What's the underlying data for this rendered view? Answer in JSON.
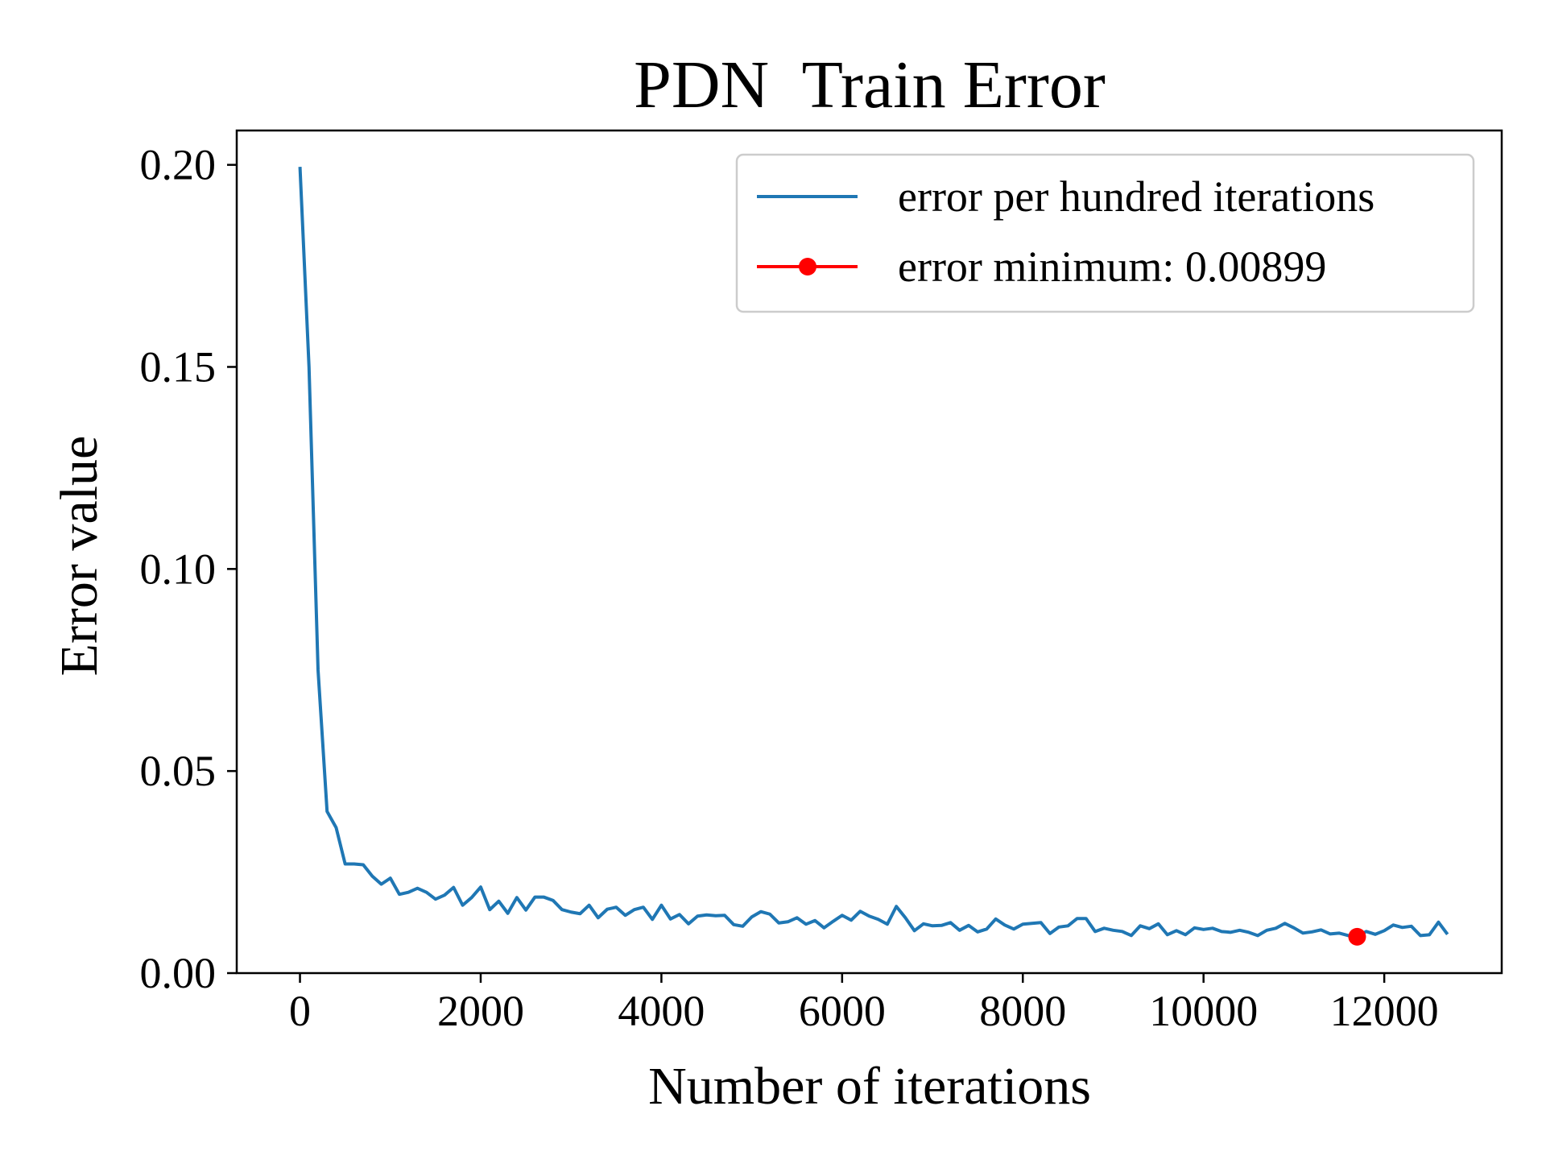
{
  "chart_data": {
    "type": "line",
    "title": "PDN  Train Error",
    "xlabel": "Number of iterations",
    "ylabel": "Error value",
    "xlim": [
      -700,
      13300
    ],
    "ylim": [
      0,
      0.2085
    ],
    "xticks": [
      0,
      2000,
      4000,
      6000,
      8000,
      10000,
      12000
    ],
    "xtick_labels": [
      "0",
      "2000",
      "4000",
      "6000",
      "8000",
      "10000",
      "12000"
    ],
    "yticks": [
      0.0,
      0.05,
      0.1,
      0.15,
      0.2
    ],
    "ytick_labels": [
      "0.00",
      "0.05",
      "0.10",
      "0.15",
      "0.20"
    ],
    "grid": false,
    "legend_position": "top-right",
    "series": [
      {
        "name": "error per hundred iterations",
        "color": "#1f77b4",
        "x": [
          0,
          100,
          200,
          300,
          400,
          500,
          600,
          700,
          800,
          900,
          1000,
          1100,
          1200,
          1300,
          1400,
          1500,
          1600,
          1700,
          1800,
          1900,
          2000,
          2100,
          2200,
          2300,
          2400,
          2500,
          2600,
          2700,
          2800,
          2900,
          3000,
          3100,
          3200,
          3300,
          3400,
          3500,
          3600,
          3700,
          3800,
          3900,
          4000,
          4100,
          4200,
          4300,
          4400,
          4500,
          4600,
          4700,
          4800,
          4900,
          5000,
          5100,
          5200,
          5300,
          5400,
          5500,
          5600,
          5700,
          5800,
          5900,
          6000,
          6100,
          6200,
          6300,
          6400,
          6500,
          6600,
          6700,
          6800,
          6900,
          7000,
          7100,
          7200,
          7300,
          7400,
          7500,
          7600,
          7700,
          7800,
          7900,
          8000,
          8100,
          8200,
          8300,
          8400,
          8500,
          8600,
          8700,
          8800,
          8900,
          9000,
          9100,
          9200,
          9300,
          9400,
          9500,
          9600,
          9700,
          9800,
          9900,
          10000,
          10100,
          10200,
          10300,
          10400,
          10500,
          10600,
          10700,
          10800,
          10900,
          11000,
          11100,
          11200,
          11300,
          11400,
          11500,
          11600,
          11700,
          11800,
          11900,
          12000,
          12100,
          12200,
          12300,
          12400,
          12500,
          12600,
          12700
        ],
        "y": [
          0.1995,
          0.15,
          0.075,
          0.04,
          0.036,
          0.027,
          0.027,
          0.0268,
          0.024,
          0.022,
          0.0235,
          0.0195,
          0.02,
          0.021,
          0.02,
          0.0183,
          0.0193,
          0.0212,
          0.0168,
          0.0187,
          0.0213,
          0.0157,
          0.0178,
          0.0148,
          0.0187,
          0.0156,
          0.0188,
          0.0188,
          0.018,
          0.0157,
          0.0151,
          0.0147,
          0.0168,
          0.0137,
          0.0158,
          0.0163,
          0.0143,
          0.0157,
          0.0163,
          0.0133,
          0.0168,
          0.0134,
          0.0145,
          0.0122,
          0.0141,
          0.0144,
          0.0142,
          0.0143,
          0.012,
          0.0116,
          0.0139,
          0.0152,
          0.0146,
          0.0124,
          0.0127,
          0.0137,
          0.0121,
          0.013,
          0.0112,
          0.0128,
          0.0143,
          0.0131,
          0.0153,
          0.0141,
          0.0133,
          0.0121,
          0.0165,
          0.0137,
          0.0105,
          0.0122,
          0.0117,
          0.0118,
          0.0125,
          0.0106,
          0.0118,
          0.0102,
          0.0109,
          0.0134,
          0.0119,
          0.0109,
          0.0121,
          0.0123,
          0.0125,
          0.0098,
          0.0114,
          0.0117,
          0.0135,
          0.0135,
          0.0103,
          0.0111,
          0.0106,
          0.0103,
          0.0093,
          0.0117,
          0.011,
          0.0122,
          0.0095,
          0.0105,
          0.0095,
          0.0112,
          0.0108,
          0.0111,
          0.0103,
          0.0101,
          0.0106,
          0.0101,
          0.0093,
          0.0106,
          0.0111,
          0.0123,
          0.0112,
          0.0099,
          0.0102,
          0.0107,
          0.0097,
          0.0099,
          0.0093,
          0.00899,
          0.0103,
          0.0096,
          0.0105,
          0.0119,
          0.0113,
          0.0116,
          0.0093,
          0.0095,
          0.0126,
          0.0096
        ]
      },
      {
        "name": "error minimum: 0.00899",
        "color": "#ff0000",
        "marker": "circle",
        "x": [
          11700
        ],
        "y": [
          0.00899
        ]
      }
    ]
  }
}
